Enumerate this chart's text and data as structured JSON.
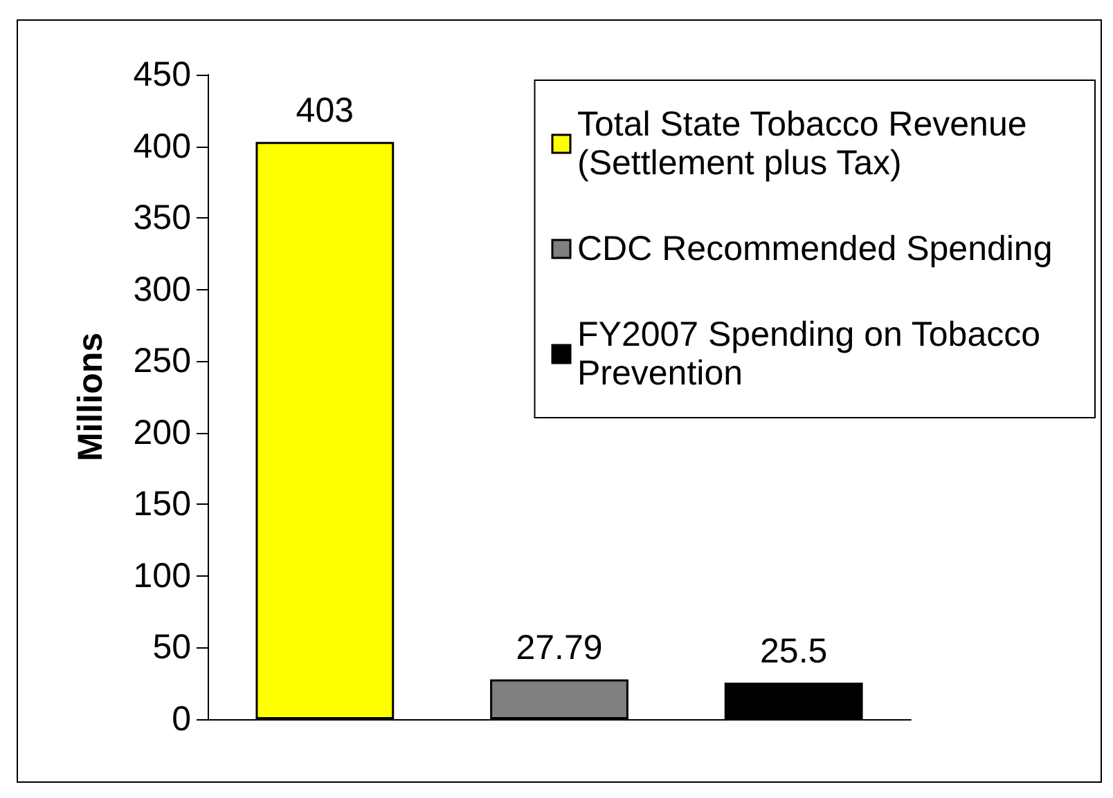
{
  "chart_data": {
    "type": "bar",
    "ylabel": "Millions",
    "categories": [
      null,
      null,
      null
    ],
    "series": [
      {
        "name": "Total State Tobacco Revenue (Settlement plus Tax)",
        "color": "#ffff00",
        "values": [
          403,
          null,
          null
        ]
      },
      {
        "name": "CDC Recommended Spending",
        "color": "#808080",
        "values": [
          null,
          27.79,
          null
        ]
      },
      {
        "name": "FY2007 Spending on Tobacco Prevention",
        "color": "#000000",
        "values": [
          null,
          null,
          25.5
        ]
      }
    ],
    "ylim": [
      0,
      450
    ],
    "yticks": [
      0,
      50,
      100,
      150,
      200,
      250,
      300,
      350,
      400,
      450
    ],
    "grid": false,
    "legend": "top right",
    "data_labels": true,
    "tick_labels": "y"
  }
}
